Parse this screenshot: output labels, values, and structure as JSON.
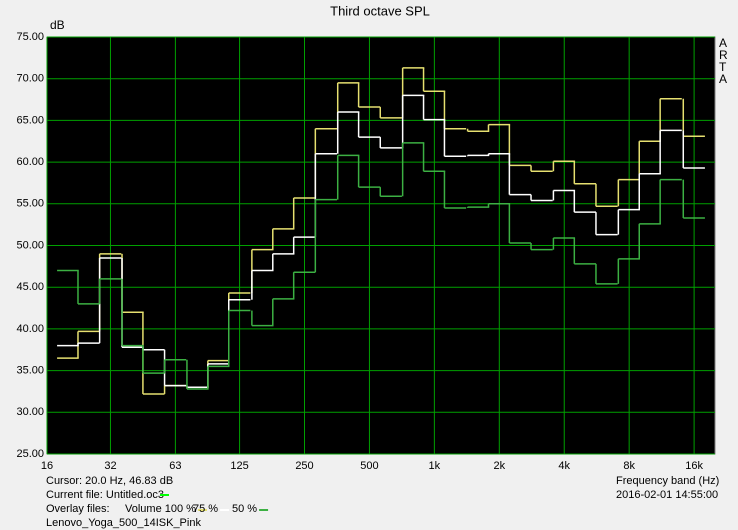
{
  "chart_data": {
    "type": "step",
    "title": "Third octave SPL",
    "ylabel": "dB",
    "xlabel": "Frequency band (Hz)",
    "watermark": "ARTA",
    "log_x": true,
    "grid": true,
    "grid_color": "#00a000",
    "plot_background": "#000000",
    "xlim": [
      16,
      20000
    ],
    "ylim": [
      25,
      75
    ],
    "xticks": [
      16,
      {
        "value": 31.5,
        "label": "32"
      },
      63,
      125,
      250,
      500,
      {
        "value": 1000,
        "label": "1k"
      },
      {
        "value": 2000,
        "label": "2k"
      },
      {
        "value": 4000,
        "label": "4k"
      },
      {
        "value": 8000,
        "label": "8k"
      },
      {
        "value": 16000,
        "label": "16k"
      }
    ],
    "yticks": [
      {
        "value": 25,
        "label": "25.00"
      },
      {
        "value": 30,
        "label": "30.00"
      },
      {
        "value": 35,
        "label": "35.00"
      },
      {
        "value": 40,
        "label": "40.00"
      },
      {
        "value": 45,
        "label": "45.00"
      },
      {
        "value": 50,
        "label": "50.00"
      },
      {
        "value": 55,
        "label": "55.00"
      },
      {
        "value": 60,
        "label": "60.00"
      },
      {
        "value": 65,
        "label": "65.00"
      },
      {
        "value": 70,
        "label": "70.00"
      },
      {
        "value": 75,
        "label": "75.00"
      }
    ],
    "x": [
      20,
      25,
      31.5,
      40,
      50,
      63,
      80,
      100,
      125,
      160,
      200,
      250,
      315,
      400,
      500,
      630,
      800,
      1000,
      1250,
      1600,
      2000,
      2500,
      3150,
      4000,
      5000,
      6300,
      8000,
      10000,
      12500,
      16000
    ],
    "series": [
      {
        "name": "Volume 100 %",
        "color": "#e6e070",
        "values": [
          36.5,
          39.7,
          49,
          42,
          32.2,
          33.2,
          33,
          36.2,
          44.3,
          49.5,
          52,
          55.7,
          64,
          69.5,
          66.6,
          65.3,
          71.3,
          68.5,
          64,
          63.7,
          64.5,
          59.6,
          58.9,
          60.1,
          57.4,
          54.7,
          57.9,
          62.5,
          67.6,
          63.1
        ]
      },
      {
        "name": "75 %",
        "color": "#ffffff",
        "values": [
          38,
          38.3,
          48.5,
          37.8,
          37.5,
          33.2,
          33,
          35.8,
          43.5,
          47,
          49,
          51,
          61,
          66,
          63,
          61.7,
          68,
          65.1,
          60.7,
          60.8,
          61,
          56.1,
          55.4,
          56.6,
          54,
          51.3,
          54.3,
          58.6,
          63.8,
          59.3
        ]
      },
      {
        "name": "50 %",
        "color": "#3cb043",
        "values": [
          47,
          43,
          46,
          38,
          34.7,
          36.3,
          32.8,
          35.5,
          42.2,
          40.4,
          43.6,
          46.8,
          55.5,
          60.8,
          57,
          55.9,
          62.3,
          58.9,
          54.5,
          54.6,
          55,
          50.3,
          49.5,
          50.9,
          47.8,
          45.4,
          48.4,
          52.6,
          57.9,
          53.3
        ]
      }
    ],
    "cursor": "Cursor:  20.0 Hz, 46.83 dB",
    "current_file": {
      "label": "Current file: Untitled.oc3",
      "color": "#00ff00"
    },
    "overlay_label": "Overlay files:",
    "file_name": "Lenovo_Yoga_500_14ISK_Pink",
    "timestamp": "2016-02-01  14:55:00"
  }
}
